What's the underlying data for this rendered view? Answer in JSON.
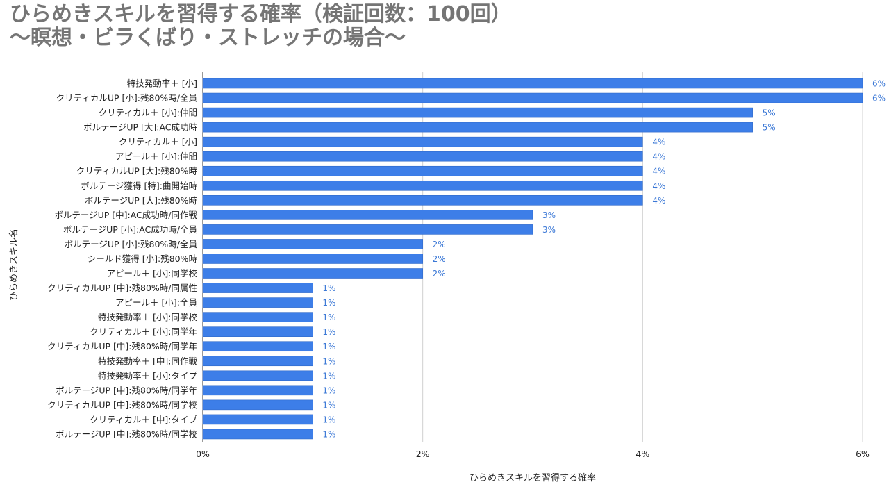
{
  "title_line1": "ひらめきスキルを習得する確率（検証回数：100回）",
  "title_line2": "〜瞑想・ビラくばり・ストレッチの場合〜",
  "colors": {
    "bar": "#3d7ee8",
    "bar_stroke": "#2f68c8",
    "label": "#3b78d6",
    "grid": "#d0d0d0",
    "title": "#757575"
  },
  "chart_data": {
    "type": "bar",
    "orientation": "horizontal",
    "xlabel": "ひらめきスキルを習得する確率",
    "ylabel": "ひらめきスキル名",
    "xlim": [
      0,
      6
    ],
    "x_ticks": [
      0,
      2,
      4,
      6
    ],
    "x_tick_labels": [
      "0%",
      "2%",
      "4%",
      "6%"
    ],
    "grid": true,
    "categories": [
      "特技発動率＋ [小]",
      "クリティカルUP [小]:残80%時/全員",
      "クリティカル＋ [小]:仲間",
      "ボルテージUP [大]:AC成功時",
      "クリティカル＋ [小]",
      "アピール＋ [小]:仲間",
      "クリティカルUP [大]:残80%時",
      "ボルテージ獲得 [特]:曲開始時",
      "ボルテージUP [大]:残80%時",
      "ボルテージUP [中]:AC成功時/同作戦",
      "ボルテージUP [小]:AC成功時/全員",
      "ボルテージUP [小]:残80%時/全員",
      "シールド獲得 [小]:残80%時",
      "アピール＋ [小]:同学校",
      "クリティカルUP [中]:残80%時/同属性",
      "アピール＋ [小]:全員",
      "特技発動率＋ [小]:同学校",
      "クリティカル＋ [小]:同学年",
      "クリティカルUP [中]:残80%時/同学年",
      "特技発動率＋ [中]:同作戦",
      "特技発動率＋ [小]:タイプ",
      "ボルテージUP [中]:残80%時/同学年",
      "クリティカルUP [中]:残80%時/同学校",
      "クリティカル＋ [中]:タイプ",
      "ボルテージUP [中]:残80%時/同学校"
    ],
    "values": [
      6,
      6,
      5,
      5,
      4,
      4,
      4,
      4,
      4,
      3,
      3,
      2,
      2,
      2,
      1,
      1,
      1,
      1,
      1,
      1,
      1,
      1,
      1,
      1,
      1
    ],
    "value_labels": [
      "6%",
      "6%",
      "5%",
      "5%",
      "4%",
      "4%",
      "4%",
      "4%",
      "4%",
      "3%",
      "3%",
      "2%",
      "2%",
      "2%",
      "1%",
      "1%",
      "1%",
      "1%",
      "1%",
      "1%",
      "1%",
      "1%",
      "1%",
      "1%",
      "1%"
    ]
  }
}
